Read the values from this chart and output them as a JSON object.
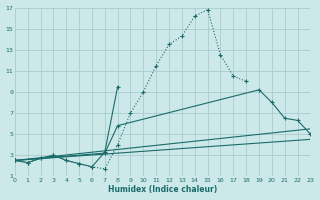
{
  "xlabel": "Humidex (Indice chaleur)",
  "bg_color": "#cce8e8",
  "grid_color": "#aacccc",
  "line_color": "#1a6b6b",
  "xlim": [
    0,
    23
  ],
  "ylim": [
    1,
    17
  ],
  "xticks": [
    0,
    1,
    2,
    3,
    4,
    5,
    6,
    7,
    8,
    9,
    10,
    11,
    12,
    13,
    14,
    15,
    16,
    17,
    18,
    19,
    20,
    21,
    22,
    23
  ],
  "yticks": [
    1,
    3,
    5,
    7,
    9,
    11,
    13,
    15,
    17
  ],
  "curve1_x": [
    0,
    1,
    2,
    3,
    4,
    5,
    6,
    7,
    8,
    9,
    10,
    11,
    12,
    13,
    14,
    15,
    16,
    17,
    18
  ],
  "curve1_y": [
    2.5,
    2.3,
    2.7,
    3.0,
    2.5,
    2.2,
    1.9,
    1.7,
    4.0,
    7.0,
    9.0,
    11.5,
    13.5,
    14.3,
    16.2,
    16.8,
    12.5,
    10.5,
    10.0
  ],
  "curve2_x": [
    0,
    1,
    2,
    3,
    4,
    5,
    6,
    7,
    8
  ],
  "curve2_y": [
    2.5,
    2.3,
    2.7,
    3.0,
    2.5,
    2.2,
    1.9,
    3.3,
    9.5
  ],
  "curve3_x": [
    0,
    7,
    8,
    19,
    20,
    21,
    22,
    23
  ],
  "curve3_y": [
    2.5,
    3.2,
    5.8,
    9.2,
    8.0,
    6.5,
    6.3,
    5.0
  ],
  "line1_x": [
    0,
    23
  ],
  "line1_y": [
    2.5,
    5.5
  ],
  "line2_x": [
    0,
    23
  ],
  "line2_y": [
    2.5,
    4.5
  ]
}
